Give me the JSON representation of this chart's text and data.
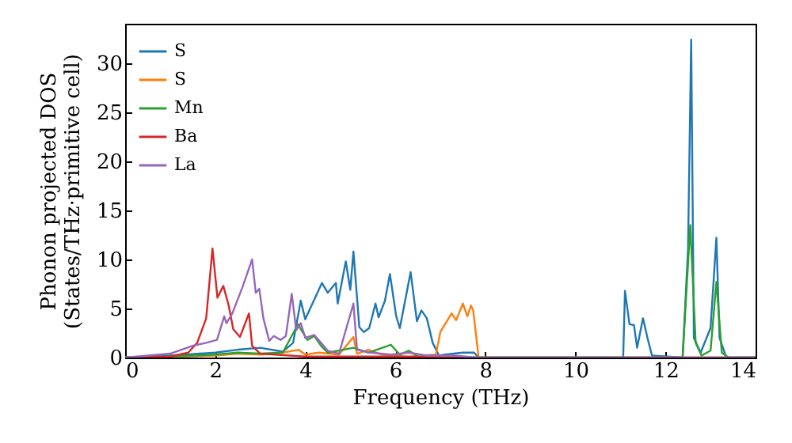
{
  "chart_data": {
    "type": "line",
    "xlabel": "Frequency (THz)",
    "ylabel": "Phonon projected DOS\n(States/THz·primitive cell)",
    "xlim": [
      0,
      14
    ],
    "ylim": [
      0,
      34
    ],
    "xticks": [
      0,
      2,
      4,
      6,
      8,
      10,
      12,
      14
    ],
    "yticks": [
      0,
      5,
      10,
      15,
      20,
      25,
      30
    ],
    "legend": "top left",
    "grid": false,
    "line_style": "solid",
    "marker": "none",
    "series": [
      {
        "name": "S",
        "color": "#1f77b4",
        "x": [
          0,
          1,
          2,
          2.5,
          3,
          3.5,
          3.73,
          3.9,
          4.0,
          4.19,
          4.37,
          4.5,
          4.68,
          4.72,
          4.9,
          5.0,
          5.07,
          5.2,
          5.3,
          5.42,
          5.56,
          5.63,
          5.77,
          5.88,
          6.02,
          6.1,
          6.34,
          6.48,
          6.58,
          6.7,
          6.83,
          6.97,
          7.1,
          7.5,
          7.75,
          7.85,
          11.0,
          11.06,
          11.1,
          11.2,
          11.3,
          11.37,
          11.5,
          11.6,
          11.7,
          12.38,
          12.5,
          12.57,
          12.63,
          12.78,
          13.0,
          13.13,
          13.2,
          13.35,
          14
        ],
        "values": [
          0,
          0.2,
          0.5,
          0.8,
          1,
          0.6,
          1.5,
          5.8,
          3.9,
          5.8,
          7.6,
          6.6,
          7.6,
          5.5,
          9.8,
          6.9,
          10.8,
          3.1,
          2.6,
          3,
          5.5,
          4.1,
          5.8,
          8.5,
          4.2,
          3,
          8.7,
          3.7,
          4.8,
          4,
          1.5,
          0.2,
          0.3,
          0.5,
          0.5,
          0,
          0,
          0,
          6.8,
          3.4,
          3.3,
          1,
          4,
          2,
          0.2,
          0,
          11,
          32.4,
          2,
          0.5,
          3,
          12.2,
          2,
          0,
          0
        ]
      },
      {
        "name": "S",
        "color": "#ff7f0e",
        "x": [
          0,
          1,
          2,
          2.5,
          3,
          3.5,
          3.85,
          4.0,
          4.3,
          4.75,
          5.07,
          5.15,
          5.4,
          5.7,
          6.3,
          6.9,
          7.0,
          7.25,
          7.35,
          7.5,
          7.6,
          7.68,
          7.73,
          7.85,
          14
        ],
        "values": [
          0,
          0.05,
          0.2,
          0.4,
          0.3,
          0.5,
          0.8,
          0.3,
          0.5,
          0.3,
          2.1,
          0.4,
          0.8,
          0.3,
          0.1,
          0.3,
          2.6,
          4.5,
          3.8,
          5.5,
          4.2,
          5.3,
          4.8,
          0,
          0
        ]
      },
      {
        "name": "Mn",
        "color": "#2ca02c",
        "x": [
          0,
          1,
          2,
          2.5,
          3,
          3.5,
          3.84,
          3.9,
          4.05,
          4.2,
          4.35,
          4.5,
          5.07,
          5.4,
          5.9,
          6.1,
          6.3,
          6.5,
          7,
          12.38,
          12.55,
          12.67,
          12.8,
          13.0,
          13.13,
          13.25,
          13.4,
          14
        ],
        "values": [
          0,
          0.1,
          0.3,
          0.5,
          0.4,
          0.5,
          3.4,
          2.9,
          1.8,
          2.2,
          1.2,
          0.5,
          1,
          0.5,
          1.3,
          0.3,
          0.7,
          0.1,
          0,
          0,
          13.5,
          1.5,
          0.2,
          0.7,
          7.7,
          0.5,
          0,
          0
        ]
      },
      {
        "name": "Ba",
        "color": "#d62728",
        "x": [
          0,
          1,
          1.4,
          1.6,
          1.8,
          1.94,
          2.05,
          2.18,
          2.3,
          2.4,
          2.55,
          2.6,
          2.75,
          2.82,
          3.0,
          4,
          6,
          7.85,
          14
        ],
        "values": [
          0,
          0.1,
          0.5,
          1.5,
          4,
          11.1,
          6.1,
          7.3,
          5.3,
          2.9,
          2.1,
          2.7,
          4.5,
          1.2,
          0.4,
          0.1,
          0.1,
          0,
          0
        ]
      },
      {
        "name": "La",
        "color": "#9467bd",
        "x": [
          0,
          1,
          1.5,
          1.8,
          2.04,
          2.2,
          2.25,
          2.38,
          2.6,
          2.82,
          2.9,
          2.98,
          3.07,
          3.2,
          3.3,
          3.45,
          3.57,
          3.7,
          3.8,
          3.9,
          4.0,
          4.2,
          4.35,
          4.5,
          4.75,
          5.07,
          5.15,
          5.45,
          5.9,
          6.3,
          6.7,
          7.3,
          7.8,
          14
        ],
        "values": [
          0,
          0.4,
          1.2,
          1.5,
          1.8,
          4.2,
          3.5,
          4.5,
          7.1,
          10,
          6.6,
          7,
          4,
          1.7,
          2.2,
          1.8,
          2.2,
          6.5,
          2.8,
          3.5,
          2,
          2.3,
          1.5,
          0.7,
          0.4,
          5.5,
          0.8,
          0.5,
          0.3,
          0.5,
          0.2,
          0.2,
          0,
          0
        ]
      }
    ]
  }
}
